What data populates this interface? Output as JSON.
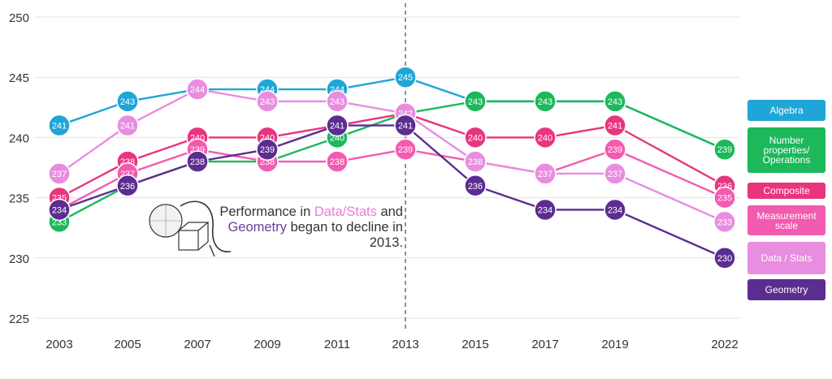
{
  "chart_data": {
    "type": "line",
    "title": "",
    "xlabel": "",
    "ylabel": "",
    "x": [
      "2003",
      "2005",
      "2007",
      "2009",
      "2011",
      "2013",
      "2015",
      "2017",
      "2019",
      "2022"
    ],
    "ylim": [
      225,
      250
    ],
    "yticks": [
      225,
      230,
      235,
      240,
      245,
      250
    ],
    "grid": true,
    "reference_line": "2013",
    "legend_position": "right",
    "series": [
      {
        "name": "Algebra",
        "color": "#1fa5d8",
        "values": [
          241,
          243,
          244,
          244,
          244,
          245,
          243,
          243,
          243,
          239
        ]
      },
      {
        "name": "Number properties/ Operations",
        "color": "#1cb85a",
        "values": [
          233,
          236,
          238,
          238,
          240,
          242,
          243,
          243,
          243,
          239
        ]
      },
      {
        "name": "Composite",
        "color": "#e8357e",
        "values": [
          235,
          238,
          240,
          240,
          241,
          242,
          240,
          240,
          241,
          236
        ]
      },
      {
        "name": "Measurement scale",
        "color": "#f25bb0",
        "values": [
          234,
          237,
          239,
          238,
          238,
          239,
          238,
          237,
          239,
          235
        ]
      },
      {
        "name": "Data / Stats",
        "color": "#e88de0",
        "values": [
          237,
          241,
          244,
          243,
          243,
          242,
          238,
          237,
          237,
          233
        ]
      },
      {
        "name": "Geometry",
        "color": "#5c2d91",
        "values": [
          234,
          236,
          238,
          239,
          241,
          241,
          236,
          234,
          234,
          230
        ]
      }
    ]
  },
  "legend": {
    "items": [
      {
        "label": "Algebra",
        "color": "#1fa5d8"
      },
      {
        "label": "Number properties/ Operations",
        "color": "#1cb85a"
      },
      {
        "label": "Composite",
        "color": "#e8357e"
      },
      {
        "label": "Measurement scale",
        "color": "#f25bb0"
      },
      {
        "label": "Data / Stats",
        "color": "#e88de0"
      },
      {
        "label": "Geometry",
        "color": "#5c2d91"
      }
    ]
  },
  "annotation": {
    "part1": "Performance in ",
    "highlight1": "Data/Stats",
    "part2": " and ",
    "highlight2": "Geometry",
    "part3": " began to decline in 2013."
  }
}
